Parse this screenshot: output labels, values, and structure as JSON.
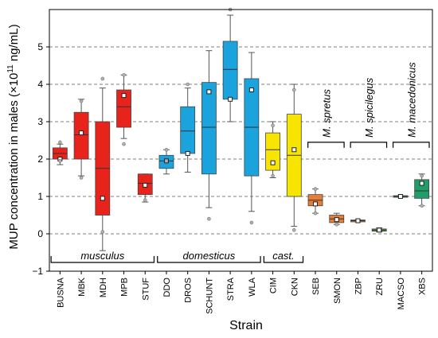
{
  "chart_data": {
    "type": "box",
    "title": "",
    "ylabel": "MUP concentration in males (×10¹¹ ng/mL)",
    "ylabel_parts": {
      "prefix": "MUP concentration in males (×10",
      "sup": "11",
      "suffix": " ng/mL)"
    },
    "xlabel": "Strain",
    "ylim": [
      -1,
      6
    ],
    "yticks": [
      -1,
      0,
      1,
      2,
      3,
      4,
      5
    ],
    "grid": "horizontal-dashed",
    "categories": [
      "BUSNA",
      "MBK",
      "MDH",
      "MPB",
      "STUF",
      "DDO",
      "DROS",
      "SCHUNT",
      "STRA",
      "WLA",
      "CIM",
      "CKN",
      "SEB",
      "SMON",
      "ZBP",
      "ZRU",
      "MACSO",
      "XBS"
    ],
    "boxes": [
      {
        "strain": "BUSNA",
        "whisker_low": 1.85,
        "q1": 2.0,
        "median": 2.15,
        "q3": 2.3,
        "whisker_high": 2.4,
        "mean": 2.0,
        "color": "#e8231c"
      },
      {
        "strain": "MBK",
        "whisker_low": 1.55,
        "q1": 2.0,
        "median": 2.65,
        "q3": 3.25,
        "whisker_high": 3.6,
        "mean": 2.7,
        "color": "#e8231c"
      },
      {
        "strain": "MDH",
        "whisker_low": -0.45,
        "q1": 0.5,
        "median": 1.75,
        "q3": 3.0,
        "whisker_high": 3.9,
        "mean": 0.95,
        "color": "#e8231c"
      },
      {
        "strain": "MPB",
        "whisker_low": 2.55,
        "q1": 2.85,
        "median": 3.4,
        "q3": 3.85,
        "whisker_high": 4.25,
        "mean": 3.7,
        "color": "#e8231c"
      },
      {
        "strain": "STUF",
        "whisker_low": 0.85,
        "q1": 1.05,
        "median": 1.35,
        "q3": 1.6,
        "whisker_high": 1.6,
        "mean": 1.3,
        "color": "#e8231c"
      },
      {
        "strain": "DDO",
        "whisker_low": 1.6,
        "q1": 1.75,
        "median": 1.95,
        "q3": 2.1,
        "whisker_high": 2.25,
        "mean": 1.95,
        "color": "#1aa3dd"
      },
      {
        "strain": "DROS",
        "whisker_low": 1.65,
        "q1": 2.15,
        "median": 2.75,
        "q3": 3.4,
        "whisker_high": 3.9,
        "mean": 2.15,
        "color": "#1aa3dd"
      },
      {
        "strain": "SCHUNT",
        "whisker_low": 0.7,
        "q1": 1.6,
        "median": 2.85,
        "q3": 4.05,
        "whisker_high": 4.9,
        "mean": 3.8,
        "color": "#1aa3dd"
      },
      {
        "strain": "STRA",
        "whisker_low": 3.0,
        "q1": 3.6,
        "median": 4.4,
        "q3": 5.15,
        "whisker_high": 5.85,
        "mean": 3.6,
        "color": "#1aa3dd"
      },
      {
        "strain": "WLA",
        "whisker_low": 0.6,
        "q1": 1.55,
        "median": 2.85,
        "q3": 4.15,
        "whisker_high": 4.85,
        "mean": 3.85,
        "color": "#1aa3dd"
      },
      {
        "strain": "CIM",
        "whisker_low": 1.5,
        "q1": 1.7,
        "median": 2.25,
        "q3": 2.7,
        "whisker_high": 3.0,
        "mean": 1.9,
        "color": "#f7e400"
      },
      {
        "strain": "CKN",
        "whisker_low": 0.2,
        "q1": 1.0,
        "median": 2.1,
        "q3": 3.2,
        "whisker_high": 4.0,
        "mean": 2.25,
        "color": "#f7e400"
      },
      {
        "strain": "SEB",
        "whisker_low": 0.55,
        "q1": 0.75,
        "median": 0.9,
        "q3": 1.05,
        "whisker_high": 1.2,
        "mean": 0.8,
        "color": "#e87d36"
      },
      {
        "strain": "SMON",
        "whisker_low": 0.25,
        "q1": 0.3,
        "median": 0.4,
        "q3": 0.5,
        "whisker_high": 0.55,
        "mean": 0.38,
        "color": "#e87d36"
      },
      {
        "strain": "ZBP",
        "whisker_low": 0.32,
        "q1": 0.32,
        "median": 0.35,
        "q3": 0.37,
        "whisker_high": 0.37,
        "mean": 0.35,
        "color": "#e87d36"
      },
      {
        "strain": "ZRU",
        "whisker_low": 0.05,
        "q1": 0.07,
        "median": 0.1,
        "q3": 0.13,
        "whisker_high": 0.16,
        "mean": 0.1,
        "color": "#5ba83f"
      },
      {
        "strain": "MACSO",
        "whisker_low": 0.98,
        "q1": 0.98,
        "median": 1.0,
        "q3": 1.02,
        "whisker_high": 1.02,
        "mean": 1.0,
        "color": "#1f9e6a"
      },
      {
        "strain": "XBS",
        "whisker_low": 0.75,
        "q1": 0.95,
        "median": 1.15,
        "q3": 1.45,
        "whisker_high": 1.6,
        "mean": 1.35,
        "color": "#1f9e6a"
      }
    ],
    "outliers": [
      {
        "strain": "BUSNA",
        "values": [
          1.95,
          2.45
        ]
      },
      {
        "strain": "MBK",
        "values": [
          1.5,
          3.55
        ]
      },
      {
        "strain": "MDH",
        "values": [
          0.05,
          4.15
        ]
      },
      {
        "strain": "MPB",
        "values": [
          2.4,
          4.25
        ]
      },
      {
        "strain": "STUF",
        "values": [
          0.9
        ]
      },
      {
        "strain": "DDO",
        "values": [
          1.95,
          2.25
        ]
      },
      {
        "strain": "DROS",
        "values": [
          4.0
        ]
      },
      {
        "strain": "SCHUNT",
        "values": [
          0.4
        ]
      },
      {
        "strain": "STRA",
        "values": [
          6.0
        ]
      },
      {
        "strain": "WLA",
        "values": [
          0.3
        ]
      },
      {
        "strain": "CIM",
        "values": [
          1.55,
          2.9
        ]
      },
      {
        "strain": "CKN",
        "values": [
          0.1,
          3.85
        ]
      },
      {
        "strain": "SEB",
        "values": [
          0.55,
          1.2
        ]
      },
      {
        "strain": "SMON",
        "values": [
          0.25
        ]
      },
      {
        "strain": "ZBP",
        "values": []
      },
      {
        "strain": "ZRU",
        "values": []
      },
      {
        "strain": "MACSO",
        "values": []
      },
      {
        "strain": "XBS",
        "values": [
          0.75,
          1.55
        ]
      }
    ],
    "bottom_groups": [
      {
        "label": "musculus",
        "from": "BUSNA",
        "to": "STUF"
      },
      {
        "label": "domesticus",
        "from": "DDO",
        "to": "WLA"
      },
      {
        "label": "cast.",
        "from": "CIM",
        "to": "CKN"
      }
    ],
    "top_groups": [
      {
        "label": "M. spretus",
        "from": "SEB",
        "to": "SMON",
        "y": 2.45
      },
      {
        "label": "M. spicilegus",
        "from": "ZBP",
        "to": "ZRU",
        "y": 2.45
      },
      {
        "label": "M. macedonicus",
        "from": "MACSO",
        "to": "XBS",
        "y": 2.45
      }
    ]
  }
}
